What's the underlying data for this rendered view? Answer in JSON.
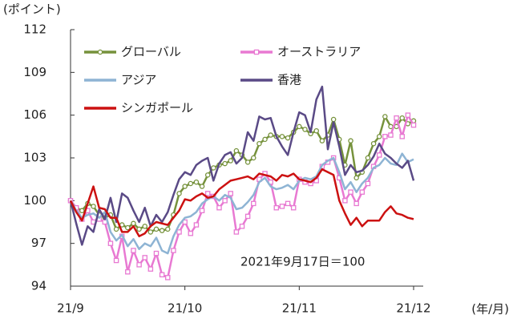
{
  "chart_data": {
    "type": "line",
    "y_label": "(ポイント)",
    "x_label": "(年/月)",
    "annotation": "2021年9月17日＝100",
    "categories": [
      "21/9",
      null,
      null,
      null,
      null,
      null,
      null,
      null,
      null,
      null,
      null,
      null,
      null,
      null,
      null,
      null,
      null,
      null,
      null,
      null,
      "21/10",
      null,
      null,
      null,
      null,
      null,
      null,
      null,
      null,
      null,
      null,
      null,
      null,
      null,
      null,
      null,
      null,
      null,
      null,
      null,
      "21/11",
      null,
      null,
      null,
      null,
      null,
      null,
      null,
      null,
      null,
      null,
      null,
      null,
      null,
      null,
      null,
      null,
      null,
      null,
      null,
      "21/12"
    ],
    "ylim": [
      94,
      112
    ],
    "yticks": [
      94,
      97,
      100,
      103,
      106,
      109,
      112
    ],
    "series": [
      {
        "name": "グローバル",
        "color": "#76923c",
        "marker": "circle",
        "values": [
          100,
          99.5,
          99.3,
          99.8,
          99.6,
          99.0,
          98.8,
          99.0,
          98.0,
          98.3,
          98.1,
          98.4,
          98.0,
          98.2,
          97.8,
          98.0,
          97.9,
          98.0,
          99.0,
          100.5,
          101.0,
          101.2,
          101.3,
          101.0,
          101.8,
          102.3,
          102.5,
          102.6,
          102.8,
          103.5,
          103.2,
          102.7,
          103.0,
          104.0,
          104.3,
          104.6,
          104.5,
          104.5,
          104.4,
          104.8,
          105.2,
          105.0,
          104.7,
          104.9,
          104.2,
          104.6,
          105.7,
          104.3,
          102.5,
          104.2,
          101.6,
          102.0,
          103.0,
          104.0,
          104.5,
          105.9,
          105.2,
          105.2,
          105.8,
          105.4,
          105.6
        ]
      },
      {
        "name": "オーストラリア",
        "color": "#e879d2",
        "marker": "square",
        "values": [
          100,
          99.5,
          98.7,
          99.3,
          98.5,
          98.7,
          98.5,
          97.0,
          95.8,
          97.5,
          95.0,
          96.5,
          95.5,
          96.0,
          95.2,
          96.3,
          94.8,
          94.6,
          96.5,
          97.8,
          98.5,
          97.7,
          98.3,
          99.3,
          100.5,
          100.3,
          99.5,
          100.0,
          100.5,
          97.8,
          98.2,
          98.9,
          99.8,
          101.5,
          101.9,
          101.3,
          99.5,
          99.6,
          99.8,
          99.5,
          101.5,
          101.3,
          101.2,
          101.4,
          102.4,
          102.7,
          103.0,
          101.6,
          100.0,
          100.6,
          99.8,
          100.6,
          101.2,
          102.4,
          103.2,
          104.5,
          104.6,
          105.8,
          104.5,
          106.0,
          105.3
        ]
      },
      {
        "name": "アジア",
        "color": "#8eb4d4",
        "marker": null,
        "values": [
          100,
          99.3,
          98.8,
          99.0,
          99.1,
          98.8,
          99.2,
          97.8,
          97.2,
          97.6,
          96.8,
          97.3,
          96.6,
          97.0,
          96.8,
          97.4,
          96.5,
          96.3,
          97.5,
          98.3,
          98.8,
          98.9,
          99.2,
          99.8,
          100.1,
          100.3,
          100.0,
          100.4,
          100.2,
          99.4,
          99.5,
          99.9,
          100.4,
          101.3,
          101.6,
          101.0,
          100.8,
          100.9,
          101.1,
          100.8,
          101.4,
          101.6,
          101.5,
          101.7,
          102.5,
          102.8,
          103.0,
          102.0,
          100.8,
          101.3,
          100.6,
          101.2,
          101.6,
          102.3,
          102.5,
          103.0,
          102.6,
          102.5,
          103.3,
          102.7,
          102.9
        ]
      },
      {
        "name": "香港",
        "color": "#5a4a86",
        "marker": null,
        "values": [
          100,
          98.4,
          96.9,
          98.2,
          97.8,
          99.4,
          98.7,
          100.2,
          98.5,
          100.5,
          100.2,
          99.3,
          98.5,
          99.5,
          98.2,
          99.0,
          98.5,
          99.2,
          100.4,
          101.5,
          102.0,
          101.8,
          102.5,
          102.8,
          103.0,
          101.4,
          102.6,
          103.2,
          103.4,
          102.6,
          103.0,
          104.8,
          104.2,
          105.9,
          105.7,
          105.8,
          104.5,
          103.8,
          103.2,
          104.8,
          106.2,
          106.0,
          104.8,
          107.1,
          108.0,
          103.6,
          105.5,
          103.8,
          101.8,
          102.5,
          102.0,
          102.1,
          102.5,
          103.1,
          104.0,
          103.3,
          103.0,
          102.6,
          102.3,
          102.8,
          101.4
        ]
      },
      {
        "name": "シンガポール",
        "color": "#cc1111",
        "marker": null,
        "values": [
          100,
          99.2,
          98.6,
          99.8,
          101.0,
          99.5,
          99.4,
          98.8,
          98.8,
          97.8,
          97.8,
          98.2,
          97.5,
          97.7,
          98.2,
          98.5,
          98.4,
          98.3,
          98.8,
          99.3,
          100.1,
          100.0,
          100.3,
          100.5,
          100.2,
          100.3,
          100.8,
          101.1,
          101.4,
          101.5,
          101.6,
          101.7,
          101.5,
          101.9,
          101.8,
          101.7,
          101.4,
          101.8,
          101.7,
          101.9,
          101.5,
          101.4,
          101.3,
          101.6,
          102.2,
          102.0,
          101.8,
          100.0,
          99.1,
          98.3,
          98.8,
          98.2,
          98.6,
          98.6,
          98.6,
          99.2,
          99.6,
          99.1,
          99.0,
          98.8,
          98.7
        ]
      }
    ]
  }
}
